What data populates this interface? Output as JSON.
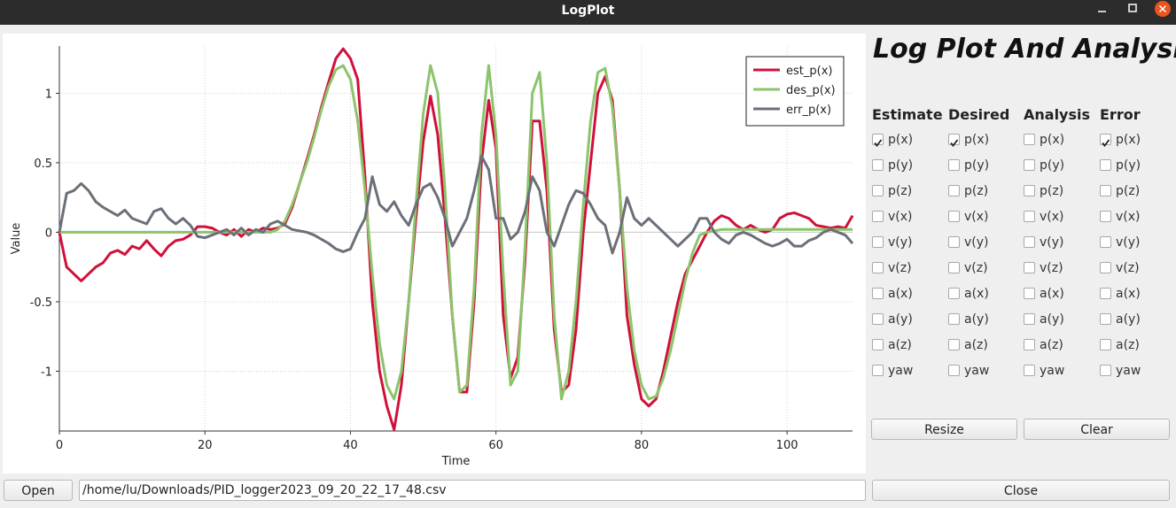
{
  "window": {
    "title": "LogPlot"
  },
  "chart_data": {
    "type": "line",
    "xlabel": "Time",
    "ylabel": "Value",
    "x": [
      0,
      1,
      2,
      3,
      4,
      5,
      6,
      7,
      8,
      9,
      10,
      11,
      12,
      13,
      14,
      15,
      16,
      17,
      18,
      19,
      20,
      21,
      22,
      23,
      24,
      25,
      26,
      27,
      28,
      29,
      30,
      31,
      32,
      33,
      34,
      35,
      36,
      37,
      38,
      39,
      40,
      41,
      42,
      43,
      44,
      45,
      46,
      47,
      48,
      49,
      50,
      51,
      52,
      53,
      54,
      55,
      56,
      57,
      58,
      59,
      60,
      61,
      62,
      63,
      64,
      65,
      66,
      67,
      68,
      69,
      70,
      71,
      72,
      73,
      74,
      75,
      76,
      77,
      78,
      79,
      80,
      81,
      82,
      83,
      84,
      85,
      86,
      87,
      88,
      89,
      90,
      91,
      92,
      93,
      94,
      95,
      96,
      97,
      98,
      99,
      100,
      101,
      102,
      103,
      104,
      105,
      106,
      107,
      108,
      109
    ],
    "series": [
      {
        "name": "est_p(x)",
        "color": "#d0103a",
        "values": [
          0,
          -0.25,
          -0.3,
          -0.35,
          -0.3,
          -0.25,
          -0.22,
          -0.15,
          -0.13,
          -0.16,
          -0.1,
          -0.12,
          -0.06,
          -0.12,
          -0.17,
          -0.1,
          -0.06,
          -0.05,
          -0.02,
          0.04,
          0.04,
          0.03,
          0,
          -0.02,
          0.02,
          -0.03,
          0.02,
          0,
          0.03,
          0.02,
          0.03,
          0.06,
          0.18,
          0.35,
          0.52,
          0.7,
          0.9,
          1.08,
          1.25,
          1.32,
          1.25,
          1.1,
          0.4,
          -0.5,
          -1,
          -1.25,
          -1.42,
          -1.1,
          -0.5,
          0.1,
          0.65,
          0.98,
          0.7,
          0.1,
          -0.6,
          -1.15,
          -1.15,
          -0.5,
          0.5,
          0.95,
          0.6,
          -0.6,
          -1.05,
          -0.9,
          -0.2,
          0.8,
          0.8,
          0.3,
          -0.7,
          -1.15,
          -1.1,
          -0.7,
          0,
          0.5,
          1,
          1.12,
          0.95,
          0.3,
          -0.6,
          -0.95,
          -1.2,
          -1.25,
          -1.2,
          -1,
          -0.75,
          -0.5,
          -0.3,
          -0.2,
          -0.1,
          0,
          0.08,
          0.12,
          0.1,
          0.05,
          0.02,
          0.05,
          0.02,
          0,
          0.02,
          0.1,
          0.13,
          0.14,
          0.12,
          0.1,
          0.05,
          0.04,
          0.03,
          0.04,
          0.03,
          0.12
        ]
      },
      {
        "name": "des_p(x)",
        "color": "#8cc46c",
        "values": [
          0,
          0,
          0,
          0,
          0,
          0,
          0,
          0,
          0,
          0,
          0,
          0,
          0,
          0,
          0,
          0,
          0,
          0,
          0,
          0,
          0,
          0,
          0,
          0,
          0,
          0,
          0,
          0,
          0,
          0,
          0.02,
          0.08,
          0.2,
          0.35,
          0.5,
          0.68,
          0.88,
          1.05,
          1.17,
          1.2,
          1.1,
          0.8,
          0.3,
          -0.3,
          -0.8,
          -1.1,
          -1.2,
          -1,
          -0.5,
          0.2,
          0.85,
          1.2,
          1,
          0.3,
          -0.6,
          -1.15,
          -1.1,
          -0.4,
          0.7,
          1.2,
          0.7,
          -0.3,
          -1.1,
          -1,
          -0.1,
          1,
          1.15,
          0.5,
          -0.6,
          -1.2,
          -1,
          -0.5,
          0.2,
          0.8,
          1.15,
          1.18,
          0.9,
          0.3,
          -0.4,
          -0.85,
          -1.1,
          -1.2,
          -1.18,
          -1.05,
          -0.85,
          -0.6,
          -0.35,
          -0.15,
          -0.02,
          0,
          0.01,
          0.02,
          0.02,
          0.02,
          0.02,
          0.02,
          0.02,
          0.02,
          0.02,
          0.02,
          0.02,
          0.02,
          0.02,
          0.02,
          0.02,
          0.02,
          0.02,
          0.02,
          0.02,
          0.02
        ]
      },
      {
        "name": "err_p(x)",
        "color": "#6b7078",
        "values": [
          0,
          0.28,
          0.3,
          0.35,
          0.3,
          0.22,
          0.18,
          0.15,
          0.12,
          0.16,
          0.1,
          0.08,
          0.06,
          0.15,
          0.17,
          0.1,
          0.06,
          0.1,
          0.05,
          -0.03,
          -0.04,
          -0.02,
          0,
          0.02,
          -0.02,
          0.03,
          -0.02,
          0.02,
          0,
          0.06,
          0.08,
          0.05,
          0.02,
          0.01,
          0,
          -0.02,
          -0.05,
          -0.08,
          -0.12,
          -0.14,
          -0.12,
          0,
          0.1,
          0.4,
          0.2,
          0.15,
          0.22,
          0.12,
          0.05,
          0.2,
          0.32,
          0.35,
          0.25,
          0.1,
          -0.1,
          0,
          0.1,
          0.3,
          0.55,
          0.45,
          0.1,
          0.1,
          -0.05,
          0,
          0.15,
          0.4,
          0.3,
          0,
          -0.1,
          0.05,
          0.2,
          0.3,
          0.28,
          0.2,
          0.1,
          0.05,
          -0.15,
          0,
          0.25,
          0.1,
          0.05,
          0.1,
          0.05,
          0,
          -0.05,
          -0.1,
          -0.05,
          0,
          0.1,
          0.1,
          0,
          -0.05,
          -0.08,
          -0.02,
          0,
          -0.02,
          -0.05,
          -0.08,
          -0.1,
          -0.08,
          -0.05,
          -0.1,
          -0.1,
          -0.06,
          -0.04,
          0,
          0.02,
          0,
          -0.02,
          -0.08
        ]
      }
    ],
    "xlim": [
      0,
      109
    ],
    "ylim": [
      -1.43,
      1.34
    ],
    "xticks": [
      0,
      20,
      40,
      60,
      80,
      100
    ],
    "yticks": [
      -1,
      -0.5,
      0,
      0.5,
      1
    ],
    "grid": true,
    "legend": "upper right"
  },
  "panel": {
    "title": "Log Plot And Analysis",
    "columns": [
      {
        "header": "Estimate",
        "items": [
          "p(x)",
          "p(y)",
          "p(z)",
          "v(x)",
          "v(y)",
          "v(z)",
          "a(x)",
          "a(y)",
          "a(z)",
          "yaw"
        ],
        "checked": [
          true,
          false,
          false,
          false,
          false,
          false,
          false,
          false,
          false,
          false
        ]
      },
      {
        "header": "Desired",
        "items": [
          "p(x)",
          "p(y)",
          "p(z)",
          "v(x)",
          "v(y)",
          "v(z)",
          "a(x)",
          "a(y)",
          "a(z)",
          "yaw"
        ],
        "checked": [
          true,
          false,
          false,
          false,
          false,
          false,
          false,
          false,
          false,
          false
        ]
      },
      {
        "header": "Analysis",
        "items": [
          "p(x)",
          "p(y)",
          "p(z)",
          "v(x)",
          "v(y)",
          "v(z)",
          "a(x)",
          "a(y)",
          "a(z)",
          "yaw"
        ],
        "checked": [
          false,
          false,
          false,
          false,
          false,
          false,
          false,
          false,
          false,
          false
        ]
      },
      {
        "header": "Error",
        "items": [
          "p(x)",
          "p(y)",
          "p(z)",
          "v(x)",
          "v(y)",
          "v(z)",
          "a(x)",
          "a(y)",
          "a(z)",
          "yaw"
        ],
        "checked": [
          true,
          false,
          false,
          false,
          false,
          false,
          false,
          false,
          false,
          false
        ]
      }
    ],
    "buttons": [
      "Resize",
      "Clear"
    ]
  },
  "footer": {
    "open": "Open",
    "path": "/home/lu/Downloads/PID_logger2023_09_20_22_17_48.csv",
    "close": "Close"
  }
}
